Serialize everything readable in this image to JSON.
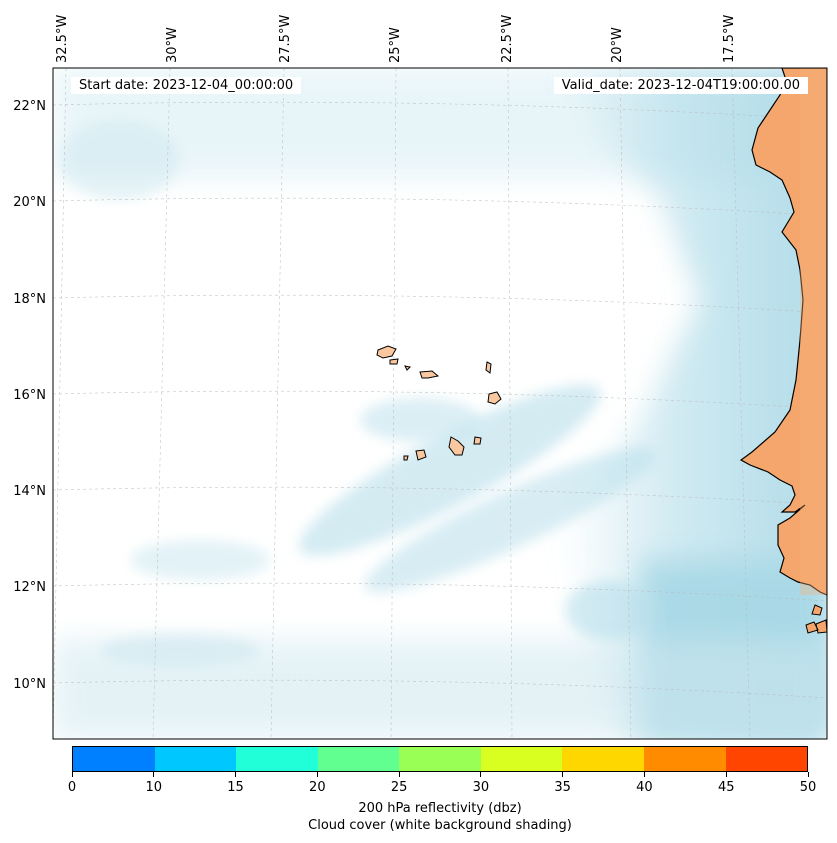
{
  "map": {
    "start_date_label": "Start date: 2023-12-04_00:00:00",
    "valid_date_label": "Valid_date: 2023-12-04T19:00:00.00",
    "lon_labels": [
      "32.5°W",
      "30°W",
      "27.5°W",
      "25°W",
      "22.5°W",
      "20°W",
      "17.5°W"
    ],
    "lat_labels": [
      "22°N",
      "20°N",
      "18°N",
      "16°N",
      "14°N",
      "12°N",
      "10°N"
    ],
    "land_color": "#f4a66c",
    "cloud_color": "#a8d8e6",
    "places": [
      "Cape Verde Islands",
      "West African coast (Senegal / Gambia / Guinea-Bissau)"
    ]
  },
  "colorbar": {
    "ticks": [
      "0",
      "10",
      "15",
      "20",
      "25",
      "30",
      "35",
      "40",
      "45",
      "50"
    ],
    "colors": [
      "#0080ff",
      "#00c8ff",
      "#20ffd8",
      "#60ff90",
      "#99ff55",
      "#d8ff20",
      "#ffd700",
      "#ff8c00",
      "#ff4500"
    ],
    "label_line1": "200 hPa reflectivity (dbz)",
    "label_line2": "Cloud cover (white background shading)"
  }
}
